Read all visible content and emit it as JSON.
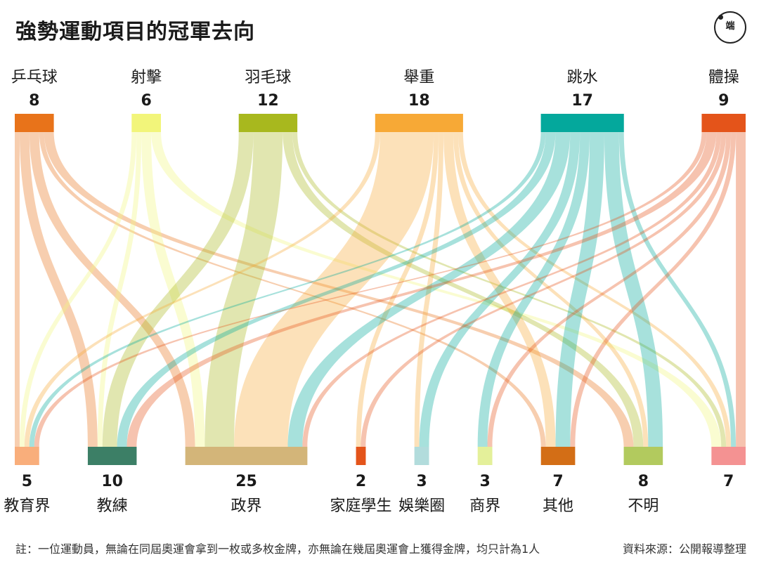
{
  "title": "強勢運動項目的冠軍去向",
  "logo_text": "端",
  "footnote": "註：一位運動員，無論在同屆奧運會拿到一枚或多枚金牌，亦無論在幾屆奧運會上獲得金牌，均只計為1人",
  "source": "資料來源：公開報導整理",
  "chart_data": {
    "type": "sankey",
    "sources": [
      {
        "name": "乒乓球",
        "value": 8,
        "color": "#e8731a"
      },
      {
        "name": "射擊",
        "value": 6,
        "color": "#f2f57a"
      },
      {
        "name": "羽毛球",
        "value": 12,
        "color": "#a8b81e"
      },
      {
        "name": "舉重",
        "value": 18,
        "color": "#f7a936"
      },
      {
        "name": "跳水",
        "value": 17,
        "color": "#04a89c"
      },
      {
        "name": "體操",
        "value": 9,
        "color": "#e4541a"
      }
    ],
    "targets": [
      {
        "name": "教育界",
        "value": 5,
        "color": "#f9ae7b"
      },
      {
        "name": "教練",
        "value": 10,
        "color": "#3c7f66"
      },
      {
        "name": "政界",
        "value": 25,
        "color": "#d3b579"
      },
      {
        "name": "家庭學生",
        "value": 2,
        "color": "#e4541a"
      },
      {
        "name": "娛樂圈",
        "value": 3,
        "color": "#b2dcdc"
      },
      {
        "name": "商界",
        "value": 3,
        "color": "#e4f09a"
      },
      {
        "name": "其他",
        "value": 7,
        "color": "#d36e16"
      },
      {
        "name": "不明",
        "value": 8,
        "color": "#b2ca5e"
      },
      {
        "name": "",
        "value": 7,
        "color": "#f49292"
      }
    ],
    "links": [
      {
        "source": 0,
        "target": 0,
        "value": 1
      },
      {
        "source": 0,
        "target": 1,
        "value": 2
      },
      {
        "source": 0,
        "target": 2,
        "value": 2
      },
      {
        "source": 0,
        "target": 6,
        "value": 1
      },
      {
        "source": 0,
        "target": 7,
        "value": 2
      },
      {
        "source": 1,
        "target": 0,
        "value": 1
      },
      {
        "source": 1,
        "target": 1,
        "value": 1
      },
      {
        "source": 1,
        "target": 2,
        "value": 2
      },
      {
        "source": 1,
        "target": 8,
        "value": 2
      },
      {
        "source": 2,
        "target": 1,
        "value": 3
      },
      {
        "source": 2,
        "target": 2,
        "value": 6
      },
      {
        "source": 2,
        "target": 7,
        "value": 2
      },
      {
        "source": 2,
        "target": 8,
        "value": 1
      },
      {
        "source": 3,
        "target": 0,
        "value": 1
      },
      {
        "source": 3,
        "target": 2,
        "value": 11
      },
      {
        "source": 3,
        "target": 3,
        "value": 1
      },
      {
        "source": 3,
        "target": 4,
        "value": 1
      },
      {
        "source": 3,
        "target": 6,
        "value": 2
      },
      {
        "source": 3,
        "target": 7,
        "value": 1
      },
      {
        "source": 3,
        "target": 8,
        "value": 1
      },
      {
        "source": 4,
        "target": 0,
        "value": 1
      },
      {
        "source": 4,
        "target": 1,
        "value": 2
      },
      {
        "source": 4,
        "target": 2,
        "value": 3
      },
      {
        "source": 4,
        "target": 4,
        "value": 2
      },
      {
        "source": 4,
        "target": 5,
        "value": 2
      },
      {
        "source": 4,
        "target": 6,
        "value": 3
      },
      {
        "source": 4,
        "target": 7,
        "value": 3
      },
      {
        "source": 4,
        "target": 8,
        "value": 1
      },
      {
        "source": 5,
        "target": 0,
        "value": 1
      },
      {
        "source": 5,
        "target": 1,
        "value": 2
      },
      {
        "source": 5,
        "target": 2,
        "value": 1
      },
      {
        "source": 5,
        "target": 3,
        "value": 1
      },
      {
        "source": 5,
        "target": 5,
        "value": 1
      },
      {
        "source": 5,
        "target": 6,
        "value": 1
      },
      {
        "source": 5,
        "target": 8,
        "value": 2
      }
    ]
  }
}
